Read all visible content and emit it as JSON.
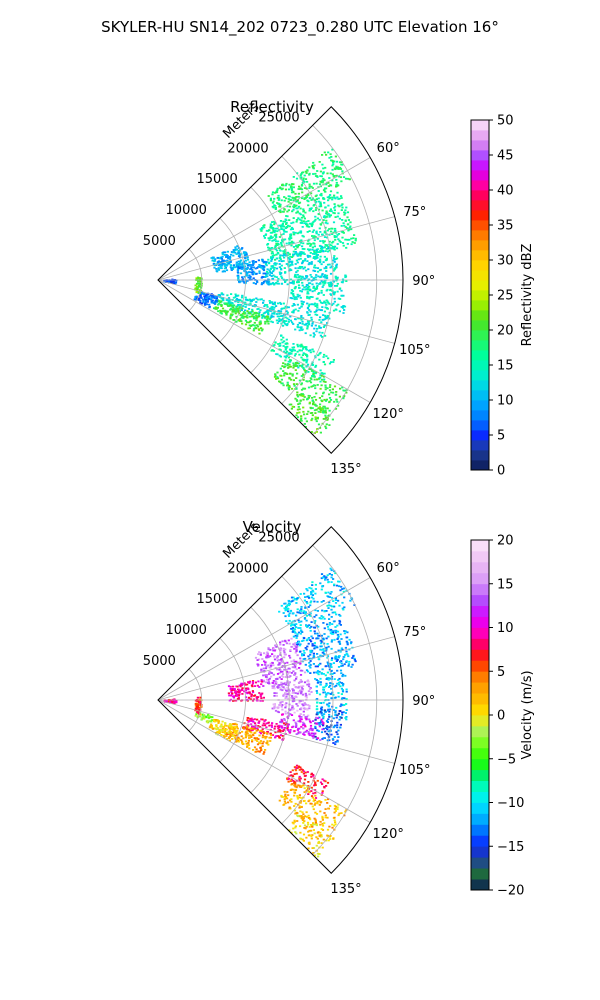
{
  "figure": {
    "suptitle": "SKYLER-HU  SN14_202  0723_0.280 UTC Elevation 16°"
  },
  "chart_data": [
    {
      "type": "heatmap",
      "projection": "polar-sector",
      "title": "Reflectivity",
      "radial_axis_label": "Meters",
      "radial_ticks": [
        5000,
        10000,
        15000,
        20000,
        25000
      ],
      "radial_tick_labels": [
        "5000",
        "10000",
        "15000",
        "20000",
        "25000"
      ],
      "rlim": [
        0,
        28000
      ],
      "azimuth_range_deg": [
        45,
        135
      ],
      "azimuth_ticks": [
        60,
        75,
        90,
        105,
        120,
        135
      ],
      "azimuth_tick_labels": [
        "60°",
        "75°",
        "90°",
        "105°",
        "120°",
        "135°"
      ],
      "grid": true,
      "colorbar": {
        "label": "Reflectivity dBZ",
        "range": [
          0,
          50
        ],
        "ticks": [
          0,
          5,
          10,
          15,
          20,
          25,
          30,
          35,
          40,
          45,
          50
        ],
        "tick_labels": [
          "0",
          "5",
          "10",
          "15",
          "20",
          "25",
          "30",
          "35",
          "40",
          "45",
          "50"
        ],
        "levels": 35
      },
      "regions": [
        {
          "az": [
            52,
            62
          ],
          "r": [
            15500,
            25000
          ],
          "value": 18
        },
        {
          "az": [
            62,
            80
          ],
          "r": [
            13000,
            23000
          ],
          "value": 16
        },
        {
          "az": [
            78,
            92
          ],
          "r": [
            12000,
            20500
          ],
          "value": 13
        },
        {
          "az": [
            88,
            100
          ],
          "r": [
            15000,
            21500
          ],
          "value": 14
        },
        {
          "az": [
            66,
            82
          ],
          "r": [
            6500,
            10500
          ],
          "value": 10
        },
        {
          "az": [
            78,
            92
          ],
          "r": [
            9000,
            12500
          ],
          "value": 9
        },
        {
          "az": [
            100,
            110
          ],
          "r": [
            7000,
            20000
          ],
          "value": 13
        },
        {
          "az": [
            108,
            118
          ],
          "r": [
            7000,
            13500
          ],
          "value": 20
        },
        {
          "az": [
            114,
            122
          ],
          "r": [
            15000,
            22000
          ],
          "value": 15
        },
        {
          "az": [
            120,
            130
          ],
          "r": [
            17000,
            25000
          ],
          "value": 20
        },
        {
          "az": [
            128,
            135
          ],
          "r": [
            20500,
            25500
          ],
          "value": 21
        },
        {
          "az": [
            104,
            118
          ],
          "r": [
            4500,
            7000
          ],
          "value": 7
        },
        {
          "az": [
            85,
            108
          ],
          "r": [
            4200,
            4900
          ],
          "value": 22
        },
        {
          "az": [
            84,
            100
          ],
          "r": [
            600,
            2000
          ],
          "value": 6
        }
      ]
    },
    {
      "type": "heatmap",
      "projection": "polar-sector",
      "title": "Velocity",
      "radial_axis_label": "Meters",
      "radial_ticks": [
        5000,
        10000,
        15000,
        20000,
        25000
      ],
      "radial_tick_labels": [
        "5000",
        "10000",
        "15000",
        "20000",
        "25000"
      ],
      "rlim": [
        0,
        28000
      ],
      "azimuth_range_deg": [
        45,
        135
      ],
      "azimuth_ticks": [
        60,
        75,
        90,
        105,
        120,
        135
      ],
      "azimuth_tick_labels": [
        "60°",
        "75°",
        "90°",
        "105°",
        "120°",
        "135°"
      ],
      "grid": true,
      "colorbar": {
        "label": "Velocity (m/s)",
        "range": [
          -20,
          20
        ],
        "ticks": [
          -20,
          -15,
          -10,
          -5,
          0,
          5,
          10,
          15,
          20
        ],
        "tick_labels": [
          "−20",
          "−15",
          "−10",
          "−5",
          "0",
          "5",
          "10",
          "15",
          "20"
        ],
        "levels": 32
      },
      "regions": [
        {
          "az": [
            52,
            64
          ],
          "r": [
            17000,
            25000
          ],
          "value": -11
        },
        {
          "az": [
            64,
            80
          ],
          "r": [
            17000,
            23000
          ],
          "value": -12
        },
        {
          "az": [
            80,
            96
          ],
          "r": [
            18000,
            21500
          ],
          "value": -11
        },
        {
          "az": [
            93,
            104
          ],
          "r": [
            18000,
            21000
          ],
          "value": -14
        },
        {
          "az": [
            64,
            82
          ],
          "r": [
            12000,
            17000
          ],
          "value": 14
        },
        {
          "az": [
            82,
            96
          ],
          "r": [
            13000,
            17500
          ],
          "value": 15
        },
        {
          "az": [
            78,
            90
          ],
          "r": [
            8000,
            12000
          ],
          "value": 9
        },
        {
          "az": [
            96,
            104
          ],
          "r": [
            14000,
            19000
          ],
          "value": 12
        },
        {
          "az": [
            100,
            108
          ],
          "r": [
            10000,
            15000
          ],
          "value": 9
        },
        {
          "az": [
            106,
            118
          ],
          "r": [
            8500,
            13500
          ],
          "value": 3
        },
        {
          "az": [
            108,
            120
          ],
          "r": [
            6500,
            9500
          ],
          "value": 1
        },
        {
          "az": [
            106,
            114
          ],
          "r": [
            4500,
            6500
          ],
          "value": -3
        },
        {
          "az": [
            115,
            122
          ],
          "r": [
            17000,
            21500
          ],
          "value": 7
        },
        {
          "az": [
            120,
            130
          ],
          "r": [
            17500,
            25000
          ],
          "value": 2
        },
        {
          "az": [
            128,
            135
          ],
          "r": [
            20500,
            25500
          ],
          "value": 1
        },
        {
          "az": [
            85,
            108
          ],
          "r": [
            4200,
            4900
          ],
          "value": 6
        },
        {
          "az": [
            84,
            100
          ],
          "r": [
            600,
            2000
          ],
          "value": 8
        }
      ]
    }
  ]
}
